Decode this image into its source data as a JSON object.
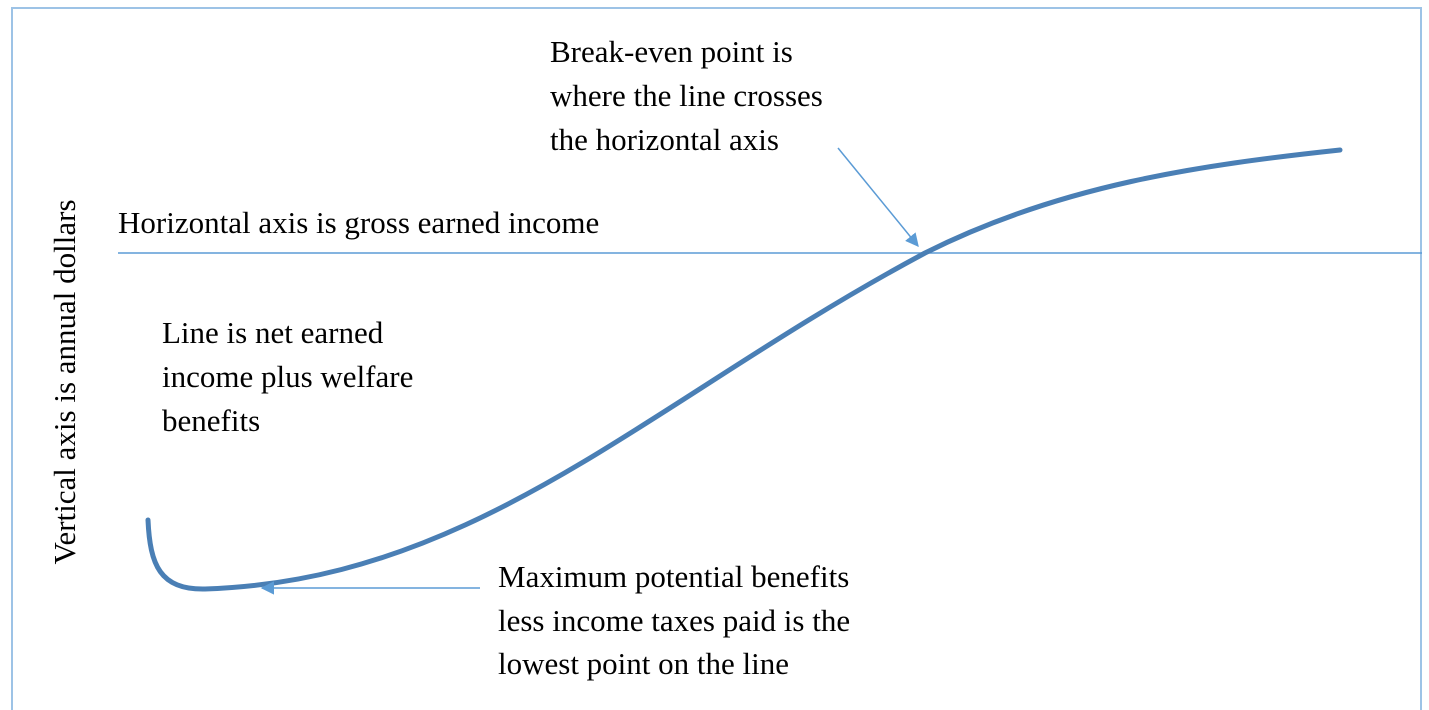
{
  "diagram": {
    "break_even": [
      "Break-even point is",
      "where the line crosses",
      "the horizontal axis"
    ],
    "horizontal_axis": "Horizontal axis is gross earned income",
    "vertical_axis": "Vertical axis is annual dollars",
    "line_note": [
      "Line is net earned",
      "income plus welfare",
      "benefits"
    ],
    "lowest_note": [
      "Maximum potential benefits",
      "less income taxes paid is the",
      "lowest point on the line"
    ]
  }
}
